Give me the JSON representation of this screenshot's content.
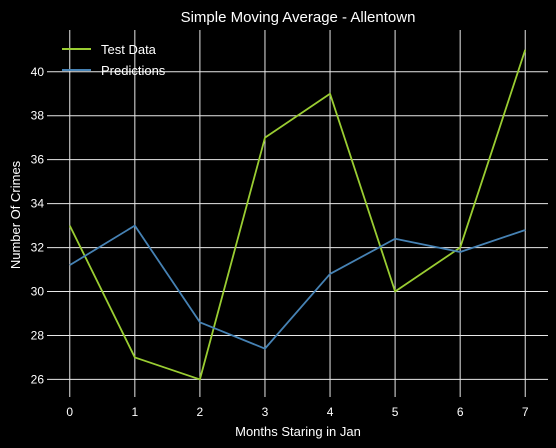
{
  "chart_data": {
    "type": "line",
    "title": "Simple Moving Average - Allentown",
    "xlabel": "Months Staring in Jan",
    "ylabel": "Number Of Crimes",
    "x": [
      0,
      1,
      2,
      3,
      4,
      5,
      6,
      7
    ],
    "xlim": [
      -0.35,
      7.35
    ],
    "ylim": [
      25.2,
      41.9
    ],
    "yticks": [
      26,
      28,
      30,
      32,
      34,
      36,
      38,
      40
    ],
    "grid": true,
    "legend_position": "top-left",
    "series": [
      {
        "name": "Test Data",
        "color": "#9acd32",
        "values": [
          33,
          27,
          26,
          37,
          39,
          30,
          32,
          41
        ]
      },
      {
        "name": "Predictions",
        "color": "#4682b4",
        "values": [
          31.2,
          33,
          28.6,
          27.4,
          30.8,
          32.4,
          31.8,
          32.8
        ]
      }
    ]
  }
}
